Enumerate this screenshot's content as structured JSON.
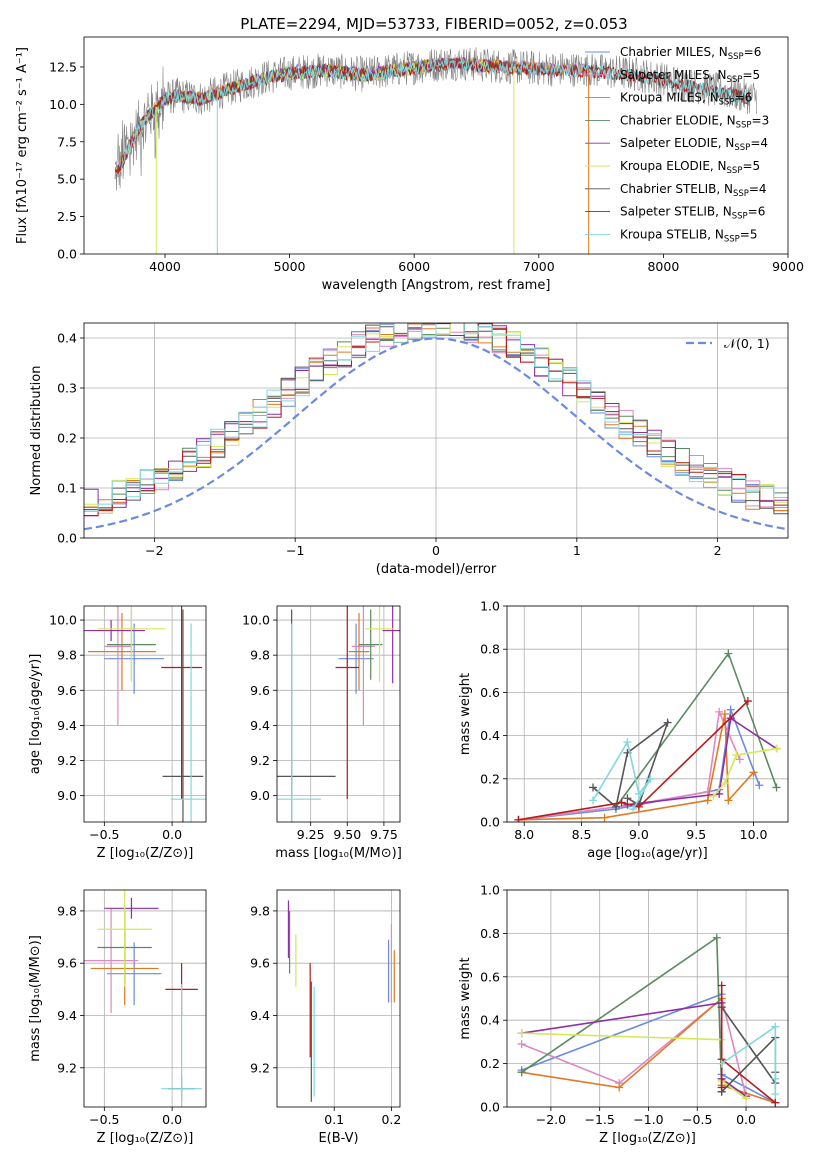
{
  "figure": {
    "title": "PLATE=2294, MJD=53733, FIBERID=0052, z=0.053"
  },
  "colors": {
    "Chabrier MILES": "#6c8be0",
    "Salpeter MILES": "#e087c4",
    "Kroupa MILES": "#e07a22",
    "Chabrier ELODIE": "#5a8a5f",
    "Salpeter ELODIE": "#8f2fa8",
    "Kroupa ELODIE": "#d5e85a",
    "Chabrier STELIB": "#555555",
    "Salpeter STELIB": "#b51c1c",
    "Kroupa STELIB": "#80d8de",
    "data": "#808080"
  },
  "chart_data": [
    {
      "id": "spectrum",
      "type": "line",
      "title": "PLATE=2294, MJD=53733, FIBERID=0052, z=0.053",
      "xlabel": "wavelength [Angstrom, rest frame]",
      "ylabel": "Flux [fλ10⁻¹⁷ erg cm⁻² s⁻¹ A⁻¹]",
      "xlim": [
        3350,
        9000
      ],
      "ylim": [
        0,
        14.5
      ],
      "xticks": [
        4000,
        5000,
        6000,
        7000,
        8000,
        9000
      ],
      "yticks": [
        0.0,
        2.5,
        5.0,
        7.5,
        10.0,
        12.5
      ],
      "ytick_labels": [
        "0.0",
        "2.5",
        "5.0",
        "7.5",
        "10.0",
        "12.5"
      ],
      "grid": false,
      "legend": "upper right",
      "data_range": [
        3600,
        8750
      ],
      "continuum": {
        "x": [
          3620,
          3700,
          3800,
          3900,
          4000,
          4100,
          4300,
          4500,
          4800,
          5000,
          5300,
          5600,
          6000,
          6300,
          6600,
          7000,
          7400,
          7800,
          8200,
          8700
        ],
        "y": [
          5.5,
          7.0,
          8.6,
          9.6,
          10.4,
          10.6,
          10.4,
          11.0,
          11.8,
          12.1,
          12.3,
          12.0,
          12.5,
          12.8,
          12.6,
          12.4,
          12.3,
          12.0,
          11.3,
          10.5
        ]
      },
      "spikes": [
        {
          "x": 3930,
          "y": 0.0,
          "color": "Kroupa ELODIE"
        },
        {
          "x": 4420,
          "y": 0.0,
          "color": "Kroupa STELIB"
        },
        {
          "x": 6800,
          "y": 0.0,
          "color": "Kroupa ELODIE"
        },
        {
          "x": 7400,
          "y": 0.0,
          "color": "Kroupa MILES"
        }
      ],
      "series": [
        {
          "label": "Chabrier MILES",
          "nssp": "6",
          "color": "Chabrier MILES",
          "x_max": 7400
        },
        {
          "label": "Salpeter MILES",
          "nssp": "5",
          "color": "Salpeter MILES",
          "x_max": 7400
        },
        {
          "label": "Kroupa MILES",
          "nssp": "6",
          "color": "Kroupa MILES",
          "x_max": 7400
        },
        {
          "label": "Chabrier ELODIE",
          "nssp": "3",
          "color": "Chabrier ELODIE",
          "x_max": 6800
        },
        {
          "label": "Salpeter ELODIE",
          "nssp": "4",
          "color": "Salpeter ELODIE",
          "x_max": 6800
        },
        {
          "label": "Kroupa ELODIE",
          "nssp": "5",
          "color": "Kroupa ELODIE",
          "x_max": 6800
        },
        {
          "label": "Chabrier STELIB",
          "nssp": "4",
          "color": "Chabrier STELIB",
          "x_max": 8700
        },
        {
          "label": "Salpeter STELIB",
          "nssp": "6",
          "color": "Salpeter STELIB",
          "x_max": 8700
        },
        {
          "label": "Kroupa STELIB",
          "nssp": "5",
          "color": "Kroupa STELIB",
          "x_max": 8700
        }
      ]
    },
    {
      "id": "residuals",
      "type": "line",
      "xlabel": "(data-model)/error",
      "ylabel": "Normed distribution",
      "xlim": [
        -2.5,
        2.5
      ],
      "ylim": [
        0,
        0.43
      ],
      "xticks": [
        -2,
        -1,
        0,
        1,
        2
      ],
      "xtick_labels": [
        "−2",
        "−1",
        "0",
        "1",
        "2"
      ],
      "yticks": [
        0.0,
        0.1,
        0.2,
        0.3,
        0.4
      ],
      "ytick_labels": [
        "0.0",
        "0.1",
        "0.2",
        "0.3",
        "0.4"
      ],
      "grid": true,
      "legend": "upper right",
      "legend_label": "𝒩(0, 1)",
      "bin_width": 0.1,
      "bin_start": -2.5,
      "series": [
        "Chabrier MILES",
        "Salpeter MILES",
        "Kroupa MILES",
        "Chabrier ELODIE",
        "Salpeter ELODIE",
        "Kroupa ELODIE",
        "Chabrier STELIB",
        "Salpeter STELIB",
        "Kroupa STELIB"
      ]
    },
    {
      "id": "age_vs_Z",
      "type": "scatter",
      "xlabel": "Z [log₁₀(Z/Z⊙)]",
      "ylabel": "age  [log₁₀(age/yr)]",
      "xlim": [
        -0.65,
        0.25
      ],
      "ylim": [
        8.85,
        10.08
      ],
      "xticks": [
        -0.5,
        0.0
      ],
      "xtick_labels": [
        "−0.5",
        "0.0"
      ],
      "yticks": [
        9.0,
        9.2,
        9.4,
        9.6,
        9.8,
        10.0
      ],
      "ytick_labels": [
        "9.0",
        "9.2",
        "9.4",
        "9.6",
        "9.8",
        "10.0"
      ],
      "grid": true,
      "points": [
        {
          "color": "Chabrier MILES",
          "x": -0.28,
          "y": 9.78,
          "xerr": 0.22,
          "yerr": 0.2
        },
        {
          "color": "Salpeter MILES",
          "x": -0.4,
          "y": 9.85,
          "xerr": 0.1,
          "yerr": 0.45
        },
        {
          "color": "Kroupa MILES",
          "x": -0.37,
          "y": 9.82,
          "xerr": 0.25,
          "yerr": 0.22
        },
        {
          "color": "Chabrier ELODIE",
          "x": -0.3,
          "y": 9.86,
          "xerr": 0.18,
          "yerr": 0.2
        },
        {
          "color": "Salpeter ELODIE",
          "x": -0.45,
          "y": 9.94,
          "xerr": 0.25,
          "yerr": 0.06
        },
        {
          "color": "Kroupa ELODIE",
          "x": -0.3,
          "y": 9.95,
          "xerr": 0.25,
          "yerr": 0.3
        },
        {
          "color": "Chabrier STELIB",
          "x": 0.08,
          "y": 9.11,
          "xerr": 0.15,
          "yerr": 0.95
        },
        {
          "color": "Salpeter STELIB",
          "x": 0.07,
          "y": 9.73,
          "xerr": 0.15,
          "yerr": 0.75
        },
        {
          "color": "Kroupa STELIB",
          "x": 0.14,
          "y": 8.98,
          "xerr": 0.15,
          "yerr": 1.0
        }
      ]
    },
    {
      "id": "age_vs_mass",
      "type": "scatter",
      "xlabel": "mass [log₁₀(M/M⊙)]",
      "ylabel": "",
      "xlim": [
        9.02,
        9.86
      ],
      "ylim": [
        8.85,
        10.08
      ],
      "xticks": [
        9.25,
        9.5,
        9.75
      ],
      "xtick_labels": [
        "9.25",
        "9.50",
        "9.75"
      ],
      "yticks": [
        9.0,
        9.2,
        9.4,
        9.6,
        9.8,
        10.0
      ],
      "ytick_labels": [
        "9.0",
        "9.2",
        "9.4",
        "9.6",
        "9.8",
        "10.0"
      ],
      "grid": true,
      "points": [
        {
          "color": "Chabrier MILES",
          "x": 9.56,
          "y": 9.78,
          "xerr": 0.12,
          "yerr": 0.2
        },
        {
          "color": "Salpeter MILES",
          "x": 9.61,
          "y": 9.85,
          "xerr": 0.08,
          "yerr": 0.45
        },
        {
          "color": "Kroupa MILES",
          "x": 9.58,
          "y": 9.82,
          "xerr": 0.07,
          "yerr": 0.22
        },
        {
          "color": "Chabrier ELODIE",
          "x": 9.66,
          "y": 9.86,
          "xerr": 0.08,
          "yerr": 0.2
        },
        {
          "color": "Salpeter ELODIE",
          "x": 9.81,
          "y": 9.94,
          "xerr": 0.07,
          "yerr": 0.3
        },
        {
          "color": "Kroupa ELODIE",
          "x": 9.72,
          "y": 9.95,
          "xerr": 0.1,
          "yerr": 0.3
        },
        {
          "color": "Chabrier STELIB",
          "x": 9.12,
          "y": 9.11,
          "xerr": 0.3,
          "yerr": 0.95
        },
        {
          "color": "Salpeter STELIB",
          "x": 9.5,
          "y": 9.73,
          "xerr": 0.08,
          "yerr": 0.75
        },
        {
          "color": "Kroupa STELIB",
          "x": 9.12,
          "y": 8.98,
          "xerr": 0.2,
          "yerr": 1.0
        }
      ]
    },
    {
      "id": "weight_vs_age",
      "type": "line",
      "xlabel": "age  [log₁₀(age/yr)]",
      "ylabel": "mass weight",
      "xlim": [
        7.85,
        10.3
      ],
      "ylim": [
        0,
        1
      ],
      "xticks": [
        8.0,
        8.5,
        9.0,
        9.5,
        10.0
      ],
      "xtick_labels": [
        "8.0",
        "8.5",
        "9.0",
        "9.5",
        "10.0"
      ],
      "yticks": [
        0.0,
        0.2,
        0.4,
        0.6,
        0.8,
        1.0
      ],
      "ytick_labels": [
        "0.0",
        "0.2",
        "0.4",
        "0.6",
        "0.8",
        "1.0"
      ],
      "grid": true,
      "series": [
        {
          "color": "Chabrier MILES",
          "x": [
            7.95,
            8.8,
            9.7,
            9.8,
            10.05
          ],
          "y": [
            0.01,
            0.06,
            0.15,
            0.52,
            0.17
          ]
        },
        {
          "color": "Salpeter MILES",
          "x": [
            7.95,
            8.95,
            9.6,
            9.7,
            9.88
          ],
          "y": [
            0.01,
            0.08,
            0.14,
            0.51,
            0.29
          ]
        },
        {
          "color": "Kroupa MILES",
          "x": [
            7.95,
            8.7,
            9.6,
            9.75,
            9.78,
            10.0
          ],
          "y": [
            0.01,
            0.02,
            0.1,
            0.5,
            0.1,
            0.23
          ]
        },
        {
          "color": "Chabrier ELODIE",
          "x": [
            8.8,
            9.78,
            10.2
          ],
          "y": [
            0.07,
            0.78,
            0.16
          ]
        },
        {
          "color": "Salpeter ELODIE",
          "x": [
            8.9,
            9.7,
            9.8,
            10.2
          ],
          "y": [
            0.08,
            0.13,
            0.48,
            0.34
          ]
        },
        {
          "color": "Kroupa ELODIE",
          "x": [
            9.65,
            9.75,
            9.85,
            10.2
          ],
          "y": [
            0.12,
            0.18,
            0.31,
            0.34
          ]
        },
        {
          "color": "Chabrier STELIB",
          "x": [
            8.6,
            8.8,
            8.9,
            9.25,
            9.0,
            8.9
          ],
          "y": [
            0.16,
            0.07,
            0.32,
            0.46,
            0.08,
            0.11
          ]
        },
        {
          "color": "Salpeter STELIB",
          "x": [
            7.95,
            8.85,
            9.0,
            9.95
          ],
          "y": [
            0.01,
            0.09,
            0.07,
            0.56
          ]
        },
        {
          "color": "Kroupa STELIB",
          "x": [
            8.6,
            8.9,
            9.0,
            9.1,
            8.95
          ],
          "y": [
            0.1,
            0.37,
            0.13,
            0.2,
            0.06
          ]
        }
      ]
    },
    {
      "id": "mass_vs_Z",
      "type": "scatter",
      "xlabel": "Z [log₁₀(Z/Z⊙)]",
      "ylabel": "mass [log₁₀(M/M⊙)]",
      "xlim": [
        -0.65,
        0.25
      ],
      "ylim": [
        9.05,
        9.88
      ],
      "xticks": [
        -0.5,
        0.0
      ],
      "xtick_labels": [
        "−0.5",
        "0.0"
      ],
      "yticks": [
        9.2,
        9.4,
        9.6,
        9.8
      ],
      "ytick_labels": [
        "9.2",
        "9.4",
        "9.6",
        "9.8"
      ],
      "grid": true,
      "points": [
        {
          "color": "Chabrier MILES",
          "x": -0.28,
          "y": 9.56,
          "xerr": 0.2,
          "yerr": 0.12
        },
        {
          "color": "Salpeter MILES",
          "x": -0.45,
          "y": 9.61,
          "xerr": 0.2,
          "yerr": 0.2
        },
        {
          "color": "Kroupa MILES",
          "x": -0.35,
          "y": 9.58,
          "xerr": 0.25,
          "yerr": 0.14
        },
        {
          "color": "Chabrier ELODIE",
          "x": -0.35,
          "y": 9.66,
          "xerr": 0.2,
          "yerr": 0.14
        },
        {
          "color": "Salpeter ELODIE",
          "x": -0.3,
          "y": 9.81,
          "xerr": 0.2,
          "yerr": 0.04
        },
        {
          "color": "Kroupa ELODIE",
          "x": -0.35,
          "y": 9.73,
          "xerr": 0.2,
          "yerr": 0.22
        },
        {
          "color": "Chabrier STELIB",
          "x": 0.07,
          "y": 9.12,
          "xerr": 0.1,
          "yerr": 0.05
        },
        {
          "color": "Salpeter STELIB",
          "x": 0.07,
          "y": 9.5,
          "xerr": 0.12,
          "yerr": 0.1
        },
        {
          "color": "Kroupa STELIB",
          "x": 0.07,
          "y": 9.12,
          "xerr": 0.15,
          "yerr": 0.4
        }
      ]
    },
    {
      "id": "mass_vs_ebv",
      "type": "scatter",
      "xlabel": "E(B-V)",
      "ylabel": "",
      "xlim": [
        0.0,
        0.215
      ],
      "ylim": [
        9.05,
        9.88
      ],
      "xticks": [
        0.1,
        0.2
      ],
      "xtick_labels": [
        "0.1",
        "0.2"
      ],
      "yticks": [
        9.2,
        9.4,
        9.6,
        9.8
      ],
      "ytick_labels": [
        "9.2",
        "9.4",
        "9.6",
        "9.8"
      ],
      "grid": true,
      "points": [
        {
          "color": "Chabrier MILES",
          "x": 0.195,
          "y": 9.57,
          "yerr": 0.12
        },
        {
          "color": "Salpeter MILES",
          "x": 0.2,
          "y": 9.6,
          "yerr": 0.15
        },
        {
          "color": "Kroupa MILES",
          "x": 0.205,
          "y": 9.55,
          "yerr": 0.1
        },
        {
          "color": "Chabrier ELODIE",
          "x": 0.022,
          "y": 9.68,
          "yerr": 0.12
        },
        {
          "color": "Salpeter ELODIE",
          "x": 0.02,
          "y": 9.73,
          "yerr": 0.11
        },
        {
          "color": "Kroupa ELODIE",
          "x": 0.033,
          "y": 9.61,
          "yerr": 0.1
        },
        {
          "color": "Chabrier STELIB",
          "x": 0.06,
          "y": 9.3,
          "yerr": 0.23
        },
        {
          "color": "Salpeter STELIB",
          "x": 0.058,
          "y": 9.42,
          "yerr": 0.18
        },
        {
          "color": "Kroupa STELIB",
          "x": 0.065,
          "y": 9.3,
          "yerr": 0.21
        }
      ]
    },
    {
      "id": "weight_vs_Z",
      "type": "line",
      "xlabel": "Z [log₁₀(Z/Z⊙)]",
      "ylabel": "mass weight",
      "xlim": [
        -2.45,
        0.43
      ],
      "ylim": [
        0,
        1
      ],
      "xticks": [
        -2.0,
        -1.5,
        -1.0,
        -0.5,
        0.0
      ],
      "xtick_labels": [
        "−2.0",
        "−1.5",
        "−1.0",
        "−0.5",
        "0.0"
      ],
      "yticks": [
        0.0,
        0.2,
        0.4,
        0.6,
        0.8,
        1.0
      ],
      "ytick_labels": [
        "0.0",
        "0.2",
        "0.4",
        "0.6",
        "0.8",
        "1.0"
      ],
      "grid": true,
      "series": [
        {
          "color": "Chabrier MILES",
          "x": [
            -2.3,
            -0.25,
            -0.25,
            0.3
          ],
          "y": [
            0.17,
            0.52,
            0.15,
            0.02
          ]
        },
        {
          "color": "Salpeter MILES",
          "x": [
            -2.3,
            -1.3,
            -0.25,
            0.0
          ],
          "y": [
            0.29,
            0.11,
            0.5,
            0.05
          ]
        },
        {
          "color": "Kroupa MILES",
          "x": [
            -2.3,
            -1.3,
            -0.25,
            -0.25,
            0.3
          ],
          "y": [
            0.16,
            0.09,
            0.5,
            0.1,
            0.02
          ]
        },
        {
          "color": "Chabrier ELODIE",
          "x": [
            -2.3,
            -0.3,
            -0.25
          ],
          "y": [
            0.16,
            0.78,
            0.07
          ]
        },
        {
          "color": "Salpeter ELODIE",
          "x": [
            -2.3,
            -0.25,
            -0.25,
            0.0
          ],
          "y": [
            0.34,
            0.48,
            0.13,
            0.05
          ]
        },
        {
          "color": "Kroupa ELODIE",
          "x": [
            -2.3,
            -0.25,
            -0.25,
            0.0
          ],
          "y": [
            0.34,
            0.31,
            0.12,
            0.04
          ]
        },
        {
          "color": "Chabrier STELIB",
          "x": [
            -0.25,
            0.3,
            0.3,
            0.3,
            -0.25
          ],
          "y": [
            0.07,
            0.32,
            0.16,
            0.11,
            0.46
          ]
        },
        {
          "color": "Salpeter STELIB",
          "x": [
            -0.25,
            -0.25,
            -0.25,
            0.3
          ],
          "y": [
            0.56,
            0.09,
            0.22,
            0.02
          ]
        },
        {
          "color": "Kroupa STELIB",
          "x": [
            -0.25,
            0.3,
            0.3,
            0.3
          ],
          "y": [
            0.2,
            0.37,
            0.13,
            0.06
          ]
        }
      ]
    }
  ]
}
